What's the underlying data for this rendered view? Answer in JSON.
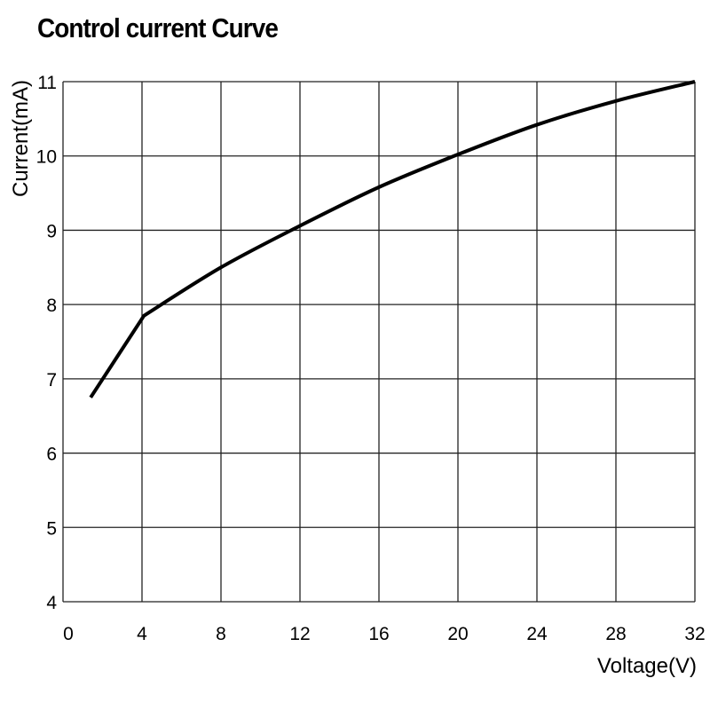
{
  "chart_data": {
    "type": "line",
    "title": "Control current Curve",
    "xlabel": "Voltage(V)",
    "ylabel": "Current(mA)",
    "xlim": [
      0,
      32
    ],
    "ylim": [
      4,
      11
    ],
    "xticks": [
      0,
      4,
      8,
      12,
      16,
      20,
      24,
      28,
      32
    ],
    "yticks": [
      4,
      5,
      6,
      7,
      8,
      9,
      10,
      11
    ],
    "grid": true,
    "series": [
      {
        "name": "Control current",
        "color": "#000000",
        "x": [
          1.4,
          4.1,
          8,
          12,
          16,
          20,
          24,
          28,
          32
        ],
        "y": [
          6.75,
          7.85,
          8.5,
          9.06,
          9.58,
          10.02,
          10.42,
          10.74,
          11.0
        ]
      }
    ]
  }
}
